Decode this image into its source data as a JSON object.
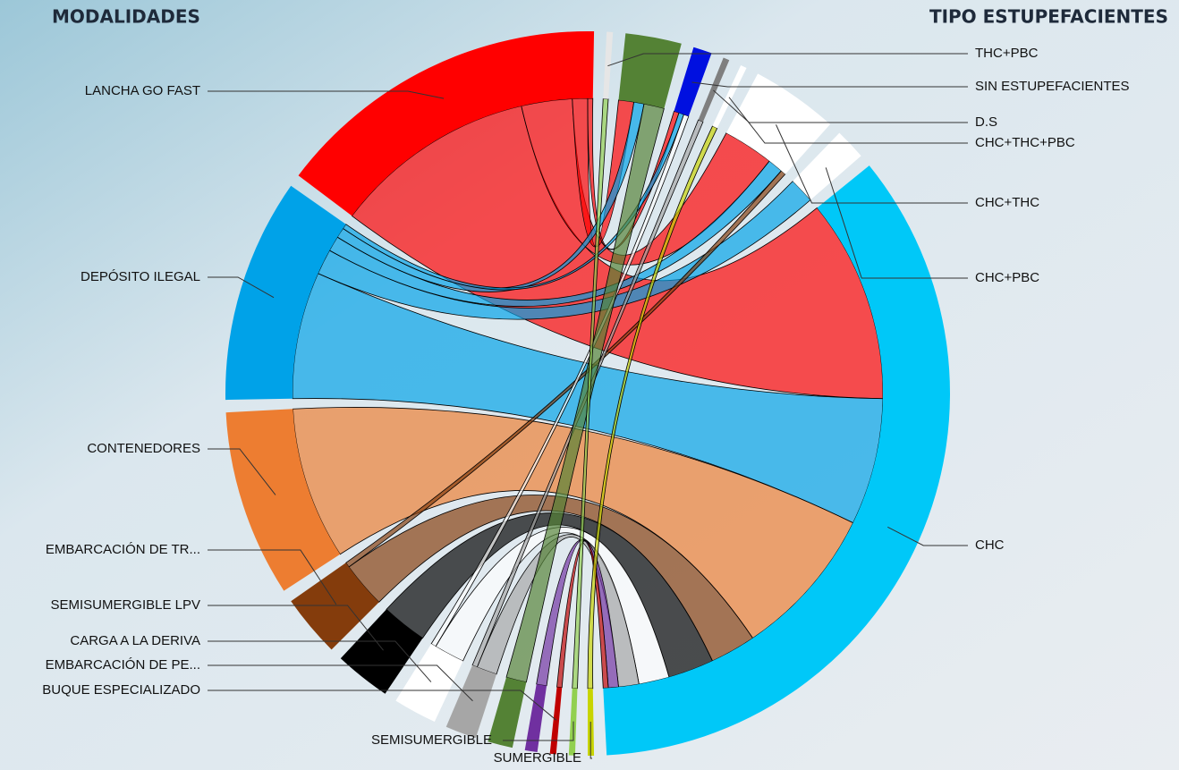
{
  "chart_data": {
    "type": "chord",
    "source_title": "MODALIDADES",
    "target_title": "TIPO ESTUPEFACIENTES",
    "nodes": [
      {
        "name": "THC+PBC",
        "color": "#e6e6e6"
      },
      {
        "name": null,
        "color": "#548235"
      },
      {
        "name": "SIN ESTUPEFACIENTES",
        "color": "#0010e0"
      },
      {
        "name": "D.S",
        "color": "#7f7f7f"
      },
      {
        "name": "CHC+THC+PBC",
        "color": "#ffffff"
      },
      {
        "name": "CHC+THC",
        "color": "#ffffff"
      },
      {
        "name": "CHC+PBC",
        "color": "#ffffff"
      },
      {
        "name": "CHC",
        "color": "#00c8f8"
      },
      {
        "name": "SUMERGIBLE",
        "color": "#c8d400"
      },
      {
        "name": "SEMISUMERGIBLE",
        "color": "#92d050"
      },
      {
        "name": "BUQUE ESPECIALIZADO",
        "color": "#c00000"
      },
      {
        "name": null,
        "color": "#7030a0"
      },
      {
        "name": null,
        "color": "#548235"
      },
      {
        "name": "EMBARCACIÓN DE PE...",
        "color": "#a6a6a6"
      },
      {
        "name": "CARGA A LA DERIVA",
        "color": "#ffffff"
      },
      {
        "name": "SEMISUMERGIBLE LPV",
        "color": "#000000"
      },
      {
        "name": "EMBARCACIÓN DE TR...",
        "color": "#843c0c"
      },
      {
        "name": "CONTENEDORES",
        "color": "#ed7d31"
      },
      {
        "name": "DEPÓSITO ILEGAL",
        "color": "#00a2e8"
      },
      {
        "name": "LANCHA GO FAST",
        "color": "#ff0000"
      }
    ],
    "links": [
      {
        "source": 19,
        "target": 7,
        "value": 40
      },
      {
        "source": 19,
        "target": 5,
        "value": 10
      },
      {
        "source": 19,
        "target": 1,
        "value": 3
      },
      {
        "source": 19,
        "target": 2,
        "value": 1
      },
      {
        "source": 18,
        "target": 7,
        "value": 25
      },
      {
        "source": 18,
        "target": 6,
        "value": 5
      },
      {
        "source": 18,
        "target": 5,
        "value": 3
      },
      {
        "source": 18,
        "target": 1,
        "value": 2
      },
      {
        "source": 18,
        "target": 2,
        "value": 1
      },
      {
        "source": 17,
        "target": 7,
        "value": 30
      },
      {
        "source": 16,
        "target": 7,
        "value": 9
      },
      {
        "source": 16,
        "target": 5,
        "value": 1
      },
      {
        "source": 15,
        "target": 7,
        "value": 9
      },
      {
        "source": 14,
        "target": 7,
        "value": 6
      },
      {
        "source": 14,
        "target": 2,
        "value": 1
      },
      {
        "source": 13,
        "target": 7,
        "value": 4
      },
      {
        "source": 13,
        "target": 3,
        "value": 1
      },
      {
        "source": 12,
        "target": 1,
        "value": 4
      },
      {
        "source": 11,
        "target": 7,
        "value": 2
      },
      {
        "source": 10,
        "target": 7,
        "value": 1
      },
      {
        "source": 9,
        "target": 0,
        "value": 1
      },
      {
        "source": 8,
        "target": 4,
        "value": 1
      }
    ]
  }
}
